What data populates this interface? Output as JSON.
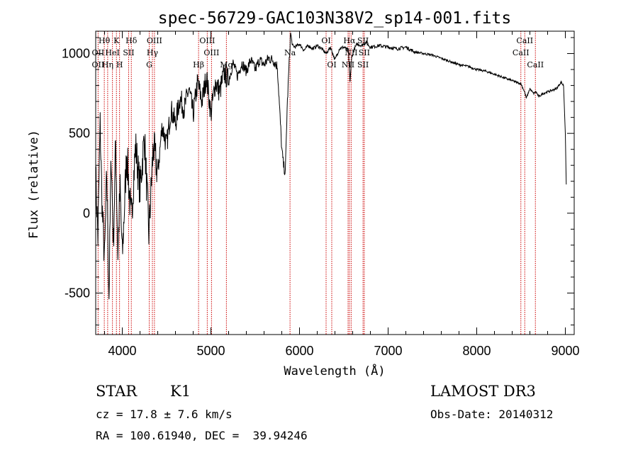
{
  "chart_data": {
    "type": "line",
    "title": "spec-56729-GAC103N38V2_sp14-001.fits",
    "xlabel": "Wavelength (Å)",
    "ylabel": "Flux (relative)",
    "xlim": [
      3700,
      9100
    ],
    "ylim": [
      -760,
      1140
    ],
    "xticks": [
      4000,
      5000,
      6000,
      7000,
      8000,
      9000
    ],
    "yticks": [
      -500,
      0,
      500,
      1000
    ],
    "series": [
      {
        "name": "flux",
        "x": [
          3700,
          3725,
          3750,
          3775,
          3800,
          3825,
          3850,
          3875,
          3900,
          3925,
          3950,
          3975,
          4000,
          4050,
          4100,
          4150,
          4200,
          4250,
          4300,
          4350,
          4400,
          4450,
          4500,
          4550,
          4600,
          4650,
          4700,
          4750,
          4800,
          4850,
          4900,
          4950,
          5000,
          5050,
          5100,
          5150,
          5200,
          5250,
          5300,
          5350,
          5400,
          5450,
          5500,
          5550,
          5600,
          5650,
          5700,
          5750,
          5800,
          5820,
          5840,
          5860,
          5880,
          5900,
          5920,
          5950,
          6000,
          6050,
          6100,
          6150,
          6200,
          6250,
          6300,
          6350,
          6400,
          6450,
          6500,
          6550,
          6570,
          6590,
          6620,
          6650,
          6700,
          6750,
          6800,
          6900,
          7000,
          7100,
          7200,
          7300,
          7400,
          7500,
          7600,
          7700,
          7800,
          7900,
          8000,
          8100,
          8200,
          8300,
          8400,
          8450,
          8500,
          8540,
          8560,
          8600,
          8640,
          8670,
          8700,
          8750,
          8800,
          8850,
          8900,
          8950,
          8980,
          9000,
          9010
        ],
        "y": [
          250,
          -150,
          550,
          0,
          -300,
          250,
          -520,
          380,
          -200,
          450,
          -250,
          150,
          -280,
          380,
          -50,
          420,
          150,
          480,
          -130,
          420,
          250,
          550,
          420,
          650,
          560,
          720,
          650,
          780,
          620,
          820,
          700,
          860,
          620,
          820,
          760,
          880,
          830,
          940,
          860,
          940,
          890,
          960,
          900,
          960,
          930,
          970,
          960,
          920,
          400,
          300,
          250,
          650,
          900,
          1130,
          1050,
          1040,
          1060,
          1020,
          1050,
          1030,
          1050,
          1030,
          1000,
          1040,
          960,
          1030,
          1040,
          1020,
          830,
          980,
          1030,
          1060,
          1050,
          1070,
          1040,
          1050,
          1040,
          1030,
          1040,
          1010,
          1000,
          990,
          970,
          950,
          930,
          920,
          900,
          890,
          870,
          850,
          830,
          820,
          810,
          760,
          720,
          780,
          750,
          760,
          730,
          750,
          760,
          770,
          780,
          820,
          800,
          500,
          180
        ]
      }
    ],
    "lines": [
      {
        "label": "Hθ",
        "x": 3797,
        "row": 1
      },
      {
        "label": "K",
        "x": 3934,
        "row": 1
      },
      {
        "label": "Hδ",
        "x": 4102,
        "row": 1
      },
      {
        "label": "OIII",
        "x": 4363,
        "row": 1
      },
      {
        "label": "OIII",
        "x": 4959,
        "row": 1
      },
      {
        "label": "OI",
        "x": 6300,
        "row": 1
      },
      {
        "label": "Hα",
        "x": 6563,
        "row": 1
      },
      {
        "label": "SII",
        "x": 6717,
        "row": 1
      },
      {
        "label": "CaII",
        "x": 8542,
        "row": 1
      },
      {
        "label": "OII",
        "x": 3727,
        "row": 2
      },
      {
        "label": "HeI",
        "x": 3889,
        "row": 2
      },
      {
        "label": "SII",
        "x": 4072,
        "row": 2
      },
      {
        "label": "Hγ",
        "x": 4340,
        "row": 2
      },
      {
        "label": "OIII",
        "x": 5007,
        "row": 2
      },
      {
        "label": "NII",
        "x": 6583,
        "row": 2
      },
      {
        "label": "SII",
        "x": 6731,
        "row": 2
      },
      {
        "label": "CaII",
        "x": 8498,
        "row": 2
      },
      {
        "label": "OII",
        "x": 3727,
        "row": 3
      },
      {
        "label": "Hη",
        "x": 3835,
        "row": 3
      },
      {
        "label": "H",
        "x": 3969,
        "row": 3
      },
      {
        "label": "G",
        "x": 4304,
        "row": 3
      },
      {
        "label": "Hβ",
        "x": 4861,
        "row": 3
      },
      {
        "label": "Mg",
        "x": 5175,
        "row": 3
      },
      {
        "label": "Na",
        "x": 5893,
        "row": 2
      },
      {
        "label": "OI",
        "x": 6364,
        "row": 3
      },
      {
        "label": "NII",
        "x": 6548,
        "row": 3
      },
      {
        "label": "SII",
        "x": 6717,
        "row": 3
      },
      {
        "label": "CaII",
        "x": 8662,
        "row": 3
      }
    ]
  },
  "info": {
    "class": "STAR",
    "subclass": "K1",
    "survey": "LAMOST DR3",
    "redshift": "cz = 17.8 ± 7.6 km/s",
    "obs_date": "Obs-Date: 20140312",
    "coords": "RA = 100.61940, DEC =  39.94246"
  },
  "colors": {
    "spectrum": "#000000",
    "line_marker": "#cc0000",
    "axes": "#000000"
  }
}
